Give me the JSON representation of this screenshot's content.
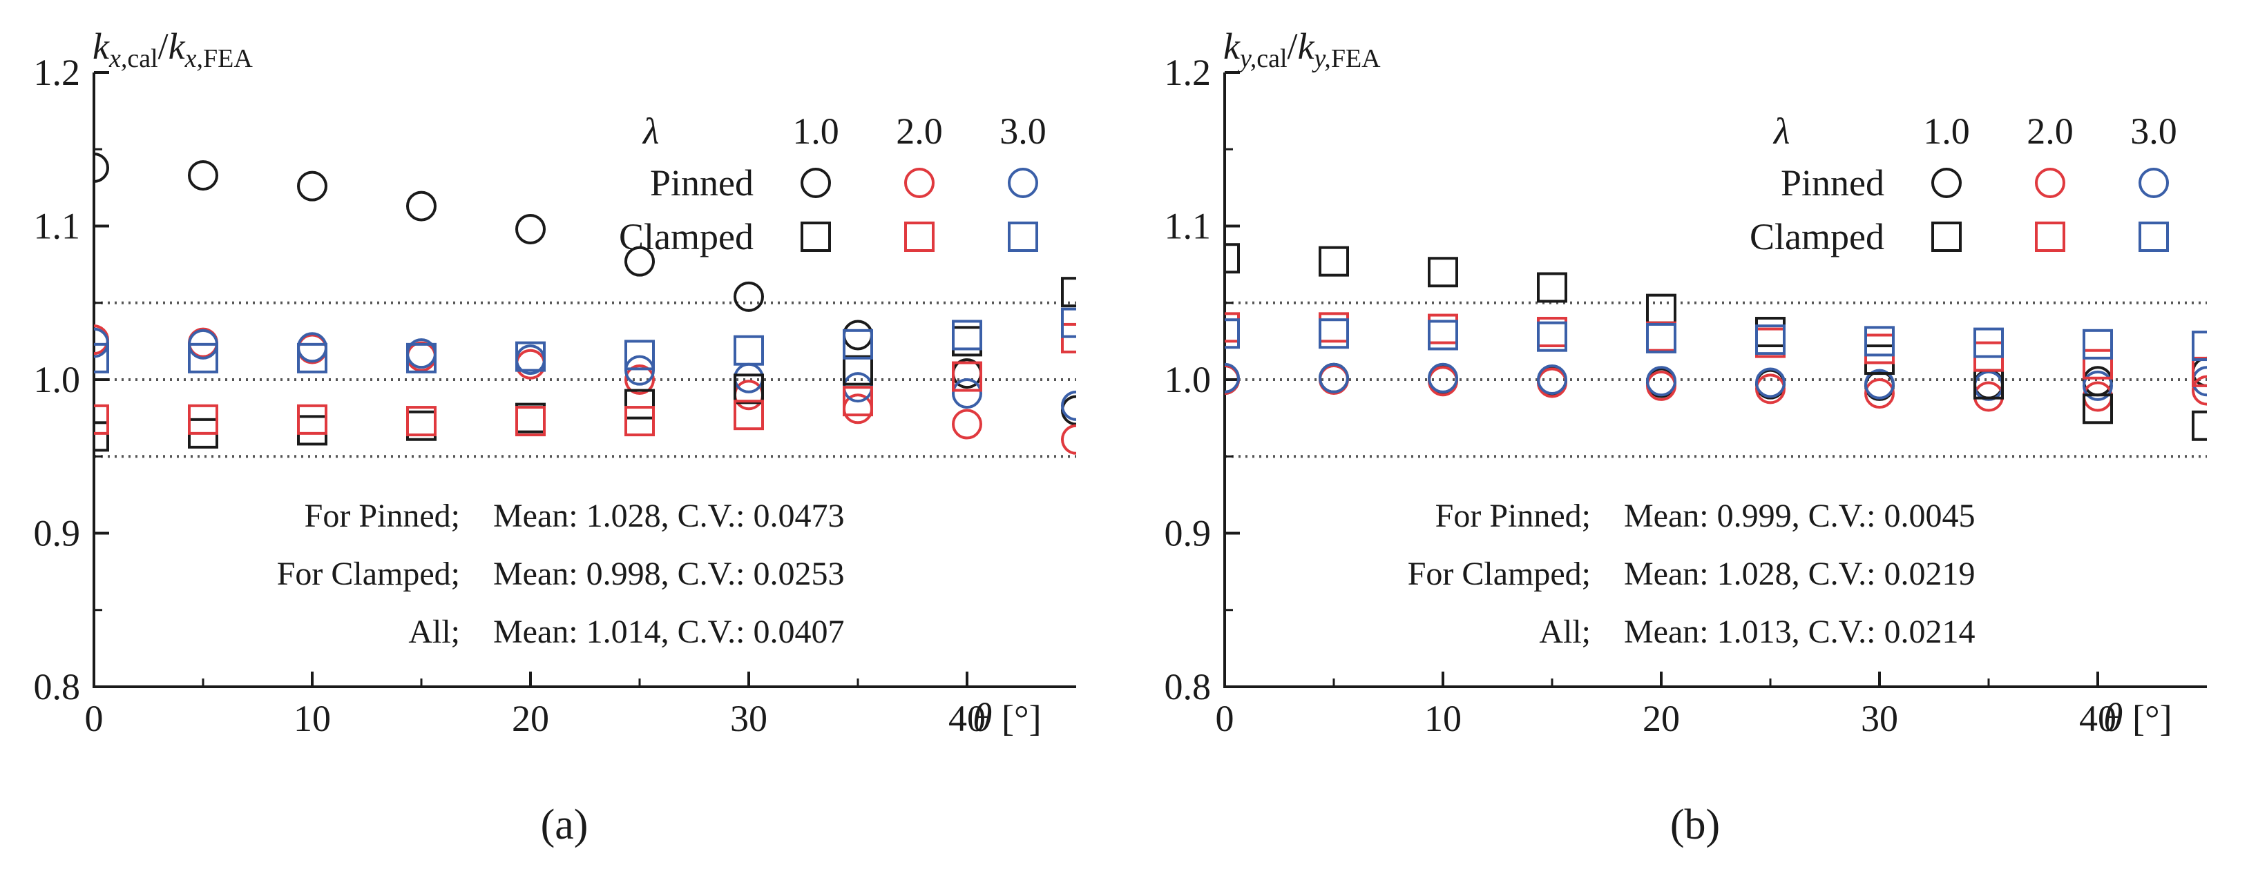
{
  "chart_data": [
    {
      "type": "scatter",
      "panel_label": "(a)",
      "ylabel": {
        "main": "k",
        "sub1": "x,",
        "sub1b": "cal",
        "sep": "/",
        "main2": "k",
        "sub2": "x,",
        "sub2b": "FEA"
      },
      "xlabel": {
        "symbol": "θ",
        "unit": " [°]"
      },
      "xlim": [
        0,
        45
      ],
      "ylim": [
        0.8,
        1.2
      ],
      "xticks": [
        0,
        10,
        20,
        30,
        40
      ],
      "yticks": [
        0.8,
        0.9,
        1.0,
        1.1,
        1.2
      ],
      "xtick_labels": [
        "0",
        "10",
        "20",
        "30",
        "40"
      ],
      "ytick_labels": [
        "0.8",
        "0.9",
        "1.0",
        "1.1",
        "1.2"
      ],
      "reference_lines": [
        0.95,
        1.0,
        1.05
      ],
      "legend": {
        "lambda_symbol": "λ",
        "lambda_values": [
          "1.0",
          "2.0",
          "3.0"
        ],
        "rows": [
          "Pinned",
          "Clamped"
        ]
      },
      "stats": [
        {
          "label": "For Pinned;",
          "text": "Mean: 1.028, C.V.: 0.0473"
        },
        {
          "label": "For Clamped;",
          "text": "Mean: 0.998, C.V.: 0.0253"
        },
        {
          "label": "All;",
          "text": "Mean: 1.014, C.V.: 0.0407"
        }
      ],
      "series": [
        {
          "name": "Pinned, λ=1.0",
          "marker": "circle",
          "color": "#1a1a1a",
          "x": [
            0,
            5,
            10,
            15,
            20,
            25,
            30,
            35,
            40,
            45
          ],
          "y": [
            1.138,
            1.133,
            1.126,
            1.113,
            1.098,
            1.077,
            1.054,
            1.029,
            1.004,
            0.98
          ]
        },
        {
          "name": "Pinned, λ=2.0",
          "marker": "circle",
          "color": "#e0393e",
          "x": [
            0,
            5,
            10,
            15,
            20,
            25,
            30,
            35,
            40,
            45
          ],
          "y": [
            1.026,
            1.024,
            1.02,
            1.015,
            1.01,
            1.0,
            0.99,
            0.981,
            0.971,
            0.961
          ]
        },
        {
          "name": "Pinned, λ=3.0",
          "marker": "circle",
          "color": "#3a5fa8",
          "x": [
            0,
            5,
            10,
            15,
            20,
            25,
            30,
            35,
            40,
            45
          ],
          "y": [
            1.024,
            1.023,
            1.021,
            1.017,
            1.013,
            1.006,
            1.001,
            0.995,
            0.991,
            0.983
          ]
        },
        {
          "name": "Clamped, λ=1.0",
          "marker": "square",
          "color": "#1a1a1a",
          "x": [
            0,
            5,
            10,
            15,
            20,
            25,
            30,
            35,
            40,
            45
          ],
          "y": [
            0.963,
            0.965,
            0.967,
            0.97,
            0.975,
            0.984,
            0.994,
            1.006,
            1.025,
            1.057
          ]
        },
        {
          "name": "Clamped, λ=2.0",
          "marker": "square",
          "color": "#e0393e",
          "x": [
            0,
            5,
            10,
            15,
            20,
            25,
            30,
            35,
            40,
            45
          ],
          "y": [
            0.974,
            0.974,
            0.974,
            0.973,
            0.973,
            0.973,
            0.977,
            0.986,
            1.002,
            1.027
          ]
        },
        {
          "name": "Clamped, λ=3.0",
          "marker": "square",
          "color": "#3a5fa8",
          "x": [
            0,
            5,
            10,
            15,
            20,
            25,
            30,
            35,
            40,
            45
          ],
          "y": [
            1.014,
            1.014,
            1.014,
            1.014,
            1.015,
            1.016,
            1.019,
            1.023,
            1.029,
            1.037
          ]
        }
      ]
    },
    {
      "type": "scatter",
      "panel_label": "(b)",
      "ylabel": {
        "main": "k",
        "sub1": "y,",
        "sub1b": "cal",
        "sep": "/",
        "main2": "k",
        "sub2": "y,",
        "sub2b": "FEA"
      },
      "xlabel": {
        "symbol": "θ",
        "unit": " [°]"
      },
      "xlim": [
        0,
        45
      ],
      "ylim": [
        0.8,
        1.2
      ],
      "xticks": [
        0,
        10,
        20,
        30,
        40
      ],
      "yticks": [
        0.8,
        0.9,
        1.0,
        1.1,
        1.2
      ],
      "xtick_labels": [
        "0",
        "10",
        "20",
        "30",
        "40"
      ],
      "ytick_labels": [
        "0.8",
        "0.9",
        "1.0",
        "1.1",
        "1.2"
      ],
      "reference_lines": [
        0.95,
        1.0,
        1.05
      ],
      "legend": {
        "lambda_symbol": "λ",
        "lambda_values": [
          "1.0",
          "2.0",
          "3.0"
        ],
        "rows": [
          "Pinned",
          "Clamped"
        ]
      },
      "stats": [
        {
          "label": "For Pinned;",
          "text": "Mean: 0.999, C.V.: 0.0045"
        },
        {
          "label": "For Clamped;",
          "text": "Mean: 1.028, C.V.: 0.0219"
        },
        {
          "label": "All;",
          "text": "Mean: 1.013, C.V.: 0.0214"
        }
      ],
      "series": [
        {
          "name": "Pinned, λ=1.0",
          "marker": "circle",
          "color": "#1a1a1a",
          "x": [
            0,
            5,
            10,
            15,
            20,
            25,
            30,
            35,
            40,
            45
          ],
          "y": [
            1.0,
            1.001,
            1.0,
            0.999,
            0.998,
            0.997,
            0.996,
            0.997,
            0.999,
            1.005
          ]
        },
        {
          "name": "Pinned, λ=2.0",
          "marker": "circle",
          "color": "#e0393e",
          "x": [
            0,
            5,
            10,
            15,
            20,
            25,
            30,
            35,
            40,
            45
          ],
          "y": [
            1.0,
            1.0,
            0.999,
            0.998,
            0.996,
            0.994,
            0.991,
            0.989,
            0.989,
            0.993
          ]
        },
        {
          "name": "Pinned, λ=3.0",
          "marker": "circle",
          "color": "#3a5fa8",
          "x": [
            0,
            5,
            10,
            15,
            20,
            25,
            30,
            35,
            40,
            45
          ],
          "y": [
            1.001,
            1.001,
            1.001,
            1.0,
            0.999,
            0.998,
            0.997,
            0.996,
            0.996,
            0.999
          ]
        },
        {
          "name": "Clamped, λ=1.0",
          "marker": "square",
          "color": "#1a1a1a",
          "x": [
            0,
            5,
            10,
            15,
            20,
            25,
            30,
            35,
            40,
            45
          ],
          "y": [
            1.079,
            1.077,
            1.07,
            1.06,
            1.046,
            1.031,
            1.013,
            0.997,
            0.981,
            0.97
          ]
        },
        {
          "name": "Clamped, λ=2.0",
          "marker": "square",
          "color": "#e0393e",
          "x": [
            0,
            5,
            10,
            15,
            20,
            25,
            30,
            35,
            40,
            45
          ],
          "y": [
            1.034,
            1.034,
            1.033,
            1.031,
            1.028,
            1.024,
            1.02,
            1.015,
            1.01,
            1.005
          ]
        },
        {
          "name": "Clamped, λ=3.0",
          "marker": "square",
          "color": "#3a5fa8",
          "x": [
            0,
            5,
            10,
            15,
            20,
            25,
            30,
            35,
            40,
            45
          ],
          "y": [
            1.03,
            1.03,
            1.029,
            1.028,
            1.027,
            1.026,
            1.025,
            1.024,
            1.023,
            1.022
          ]
        }
      ]
    }
  ]
}
